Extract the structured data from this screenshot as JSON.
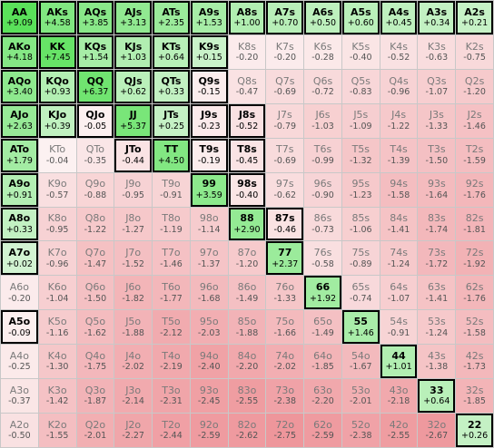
{
  "grid": {
    "rows": [
      [
        [
          "AA",
          "+9.09",
          1
        ],
        [
          "AKs",
          "+4.58",
          1
        ],
        [
          "AQs",
          "+3.85",
          1
        ],
        [
          "AJs",
          "+3.13",
          1
        ],
        [
          "ATs",
          "+2.35",
          1
        ],
        [
          "A9s",
          "+1.53",
          1
        ],
        [
          "A8s",
          "+1.00",
          1
        ],
        [
          "A7s",
          "+0.70",
          1
        ],
        [
          "A6s",
          "+0.50",
          1
        ],
        [
          "A5s",
          "+0.60",
          1
        ],
        [
          "A4s",
          "+0.45",
          1
        ],
        [
          "A3s",
          "+0.34",
          1
        ],
        [
          "A2s",
          "+0.21",
          1
        ]
      ],
      [
        [
          "AKo",
          "+4.18",
          1
        ],
        [
          "KK",
          "+7.45",
          1
        ],
        [
          "KQs",
          "+1.54",
          1
        ],
        [
          "KJs",
          "+1.03",
          1
        ],
        [
          "KTs",
          "+0.64",
          1
        ],
        [
          "K9s",
          "+0.15",
          1
        ],
        [
          "K8s",
          "-0.20",
          0
        ],
        [
          "K7s",
          "-0.20",
          0
        ],
        [
          "K6s",
          "-0.28",
          0
        ],
        [
          "K5s",
          "-0.40",
          0
        ],
        [
          "K4s",
          "-0.52",
          0
        ],
        [
          "K3s",
          "-0.63",
          0
        ],
        [
          "K2s",
          "-0.75",
          0
        ]
      ],
      [
        [
          "AQo",
          "+3.40",
          1
        ],
        [
          "KQo",
          "+0.93",
          1
        ],
        [
          "QQ",
          "+6.37",
          1
        ],
        [
          "QJs",
          "+0.62",
          1
        ],
        [
          "QTs",
          "+0.33",
          1
        ],
        [
          "Q9s",
          "-0.15",
          1
        ],
        [
          "Q8s",
          "-0.47",
          0
        ],
        [
          "Q7s",
          "-0.69",
          0
        ],
        [
          "Q6s",
          "-0.72",
          0
        ],
        [
          "Q5s",
          "-0.83",
          0
        ],
        [
          "Q4s",
          "-0.96",
          0
        ],
        [
          "Q3s",
          "-1.07",
          0
        ],
        [
          "Q2s",
          "-1.20",
          0
        ]
      ],
      [
        [
          "AJo",
          "+2.63",
          1
        ],
        [
          "KJo",
          "+0.39",
          1
        ],
        [
          "QJo",
          "-0.05",
          1
        ],
        [
          "JJ",
          "+5.37",
          1
        ],
        [
          "JTs",
          "+0.25",
          1
        ],
        [
          "J9s",
          "-0.23",
          1
        ],
        [
          "J8s",
          "-0.52",
          1
        ],
        [
          "J7s",
          "-0.79",
          0
        ],
        [
          "J6s",
          "-1.03",
          0
        ],
        [
          "J5s",
          "-1.09",
          0
        ],
        [
          "J4s",
          "-1.22",
          0
        ],
        [
          "J3s",
          "-1.33",
          0
        ],
        [
          "J2s",
          "-1.46",
          0
        ]
      ],
      [
        [
          "ATo",
          "+1.79",
          1
        ],
        [
          "KTo",
          "-0.04",
          0
        ],
        [
          "QTo",
          "-0.35",
          0
        ],
        [
          "JTo",
          "-0.44",
          1
        ],
        [
          "TT",
          "+4.50",
          1
        ],
        [
          "T9s",
          "-0.19",
          1
        ],
        [
          "T8s",
          "-0.45",
          1
        ],
        [
          "T7s",
          "-0.69",
          0
        ],
        [
          "T6s",
          "-0.99",
          0
        ],
        [
          "T5s",
          "-1.32",
          0
        ],
        [
          "T4s",
          "-1.39",
          0
        ],
        [
          "T3s",
          "-1.50",
          0
        ],
        [
          "T2s",
          "-1.59",
          0
        ]
      ],
      [
        [
          "A9o",
          "+0.91",
          1
        ],
        [
          "K9o",
          "-0.57",
          0
        ],
        [
          "Q9o",
          "-0.88",
          0
        ],
        [
          "J9o",
          "-0.95",
          0
        ],
        [
          "T9o",
          "-0.91",
          0
        ],
        [
          "99",
          "+3.59",
          1
        ],
        [
          "98s",
          "-0.40",
          1
        ],
        [
          "97s",
          "-0.62",
          0
        ],
        [
          "96s",
          "-0.90",
          0
        ],
        [
          "95s",
          "-1.23",
          0
        ],
        [
          "94s",
          "-1.58",
          0
        ],
        [
          "93s",
          "-1.64",
          0
        ],
        [
          "92s",
          "-1.76",
          0
        ]
      ],
      [
        [
          "A8o",
          "+0.33",
          1
        ],
        [
          "K8o",
          "-0.95",
          0
        ],
        [
          "Q8o",
          "-1.22",
          0
        ],
        [
          "J8o",
          "-1.27",
          0
        ],
        [
          "T8o",
          "-1.19",
          0
        ],
        [
          "98o",
          "-1.14",
          0
        ],
        [
          "88",
          "+2.90",
          1
        ],
        [
          "87s",
          "-0.46",
          1
        ],
        [
          "86s",
          "-0.73",
          0
        ],
        [
          "85s",
          "-1.06",
          0
        ],
        [
          "84s",
          "-1.41",
          0
        ],
        [
          "83s",
          "-1.74",
          0
        ],
        [
          "82s",
          "-1.81",
          0
        ]
      ],
      [
        [
          "A7o",
          "+0.02",
          1
        ],
        [
          "K7o",
          "-0.96",
          0
        ],
        [
          "Q7o",
          "-1.47",
          0
        ],
        [
          "J7o",
          "-1.52",
          0
        ],
        [
          "T7o",
          "-1.46",
          0
        ],
        [
          "97o",
          "-1.37",
          0
        ],
        [
          "87o",
          "-1.20",
          0
        ],
        [
          "77",
          "+2.37",
          1
        ],
        [
          "76s",
          "-0.58",
          0
        ],
        [
          "75s",
          "-0.89",
          0
        ],
        [
          "74s",
          "-1.24",
          0
        ],
        [
          "73s",
          "-1.72",
          0
        ],
        [
          "72s",
          "-1.92",
          0
        ]
      ],
      [
        [
          "A6o",
          "-0.20",
          0
        ],
        [
          "K6o",
          "-1.04",
          0
        ],
        [
          "Q6o",
          "-1.50",
          0
        ],
        [
          "J6o",
          "-1.82",
          0
        ],
        [
          "T6o",
          "-1.77",
          0
        ],
        [
          "96o",
          "-1.68",
          0
        ],
        [
          "86o",
          "-1.49",
          0
        ],
        [
          "76o",
          "-1.33",
          0
        ],
        [
          "66",
          "+1.92",
          1
        ],
        [
          "65s",
          "-0.74",
          0
        ],
        [
          "64s",
          "-1.07",
          0
        ],
        [
          "63s",
          "-1.41",
          0
        ],
        [
          "62s",
          "-1.76",
          0
        ]
      ],
      [
        [
          "A5o",
          "-0.09",
          1
        ],
        [
          "K5o",
          "-1.16",
          0
        ],
        [
          "Q5o",
          "-1.62",
          0
        ],
        [
          "J5o",
          "-1.88",
          0
        ],
        [
          "T5o",
          "-2.12",
          0
        ],
        [
          "95o",
          "-2.03",
          0
        ],
        [
          "85o",
          "-1.88",
          0
        ],
        [
          "75o",
          "-1.66",
          0
        ],
        [
          "65o",
          "-1.49",
          0
        ],
        [
          "55",
          "+1.46",
          1
        ],
        [
          "54s",
          "-0.91",
          0
        ],
        [
          "53s",
          "-1.24",
          0
        ],
        [
          "52s",
          "-1.58",
          0
        ]
      ],
      [
        [
          "A4o",
          "-0.25",
          0
        ],
        [
          "K4o",
          "-1.30",
          0
        ],
        [
          "Q4o",
          "-1.75",
          0
        ],
        [
          "J4o",
          "-2.02",
          0
        ],
        [
          "T4o",
          "-2.19",
          0
        ],
        [
          "94o",
          "-2.40",
          0
        ],
        [
          "84o",
          "-2.20",
          0
        ],
        [
          "74o",
          "-2.02",
          0
        ],
        [
          "64o",
          "-1.85",
          0
        ],
        [
          "54o",
          "-1.67",
          0
        ],
        [
          "44",
          "+1.01",
          1
        ],
        [
          "43s",
          "-1.38",
          0
        ],
        [
          "42s",
          "-1.73",
          0
        ]
      ],
      [
        [
          "A3o",
          "-0.37",
          0
        ],
        [
          "K3o",
          "-1.42",
          0
        ],
        [
          "Q3o",
          "-1.87",
          0
        ],
        [
          "J3o",
          "-2.14",
          0
        ],
        [
          "T3o",
          "-2.31",
          0
        ],
        [
          "93o",
          "-2.45",
          0
        ],
        [
          "83o",
          "-2.55",
          0
        ],
        [
          "73o",
          "-2.38",
          0
        ],
        [
          "63o",
          "-2.20",
          0
        ],
        [
          "53o",
          "-2.01",
          0
        ],
        [
          "43o",
          "-2.18",
          0
        ],
        [
          "33",
          "+0.64",
          1
        ],
        [
          "32s",
          "-1.85",
          0
        ]
      ],
      [
        [
          "A2o",
          "-0.50",
          0
        ],
        [
          "K2o",
          "-1.55",
          0
        ],
        [
          "Q2o",
          "-2.01",
          0
        ],
        [
          "J2o",
          "-2.27",
          0
        ],
        [
          "T2o",
          "-2.44",
          0
        ],
        [
          "92o",
          "-2.59",
          0
        ],
        [
          "82o",
          "-2.62",
          0
        ],
        [
          "72o",
          "-2.75",
          0
        ],
        [
          "62o",
          "-2.59",
          0
        ],
        [
          "52o",
          "-2.38",
          0
        ],
        [
          "42o",
          "-2.55",
          0
        ],
        [
          "32o",
          "-2.67",
          0
        ],
        [
          "22",
          "+0.26",
          1
        ]
      ]
    ]
  }
}
